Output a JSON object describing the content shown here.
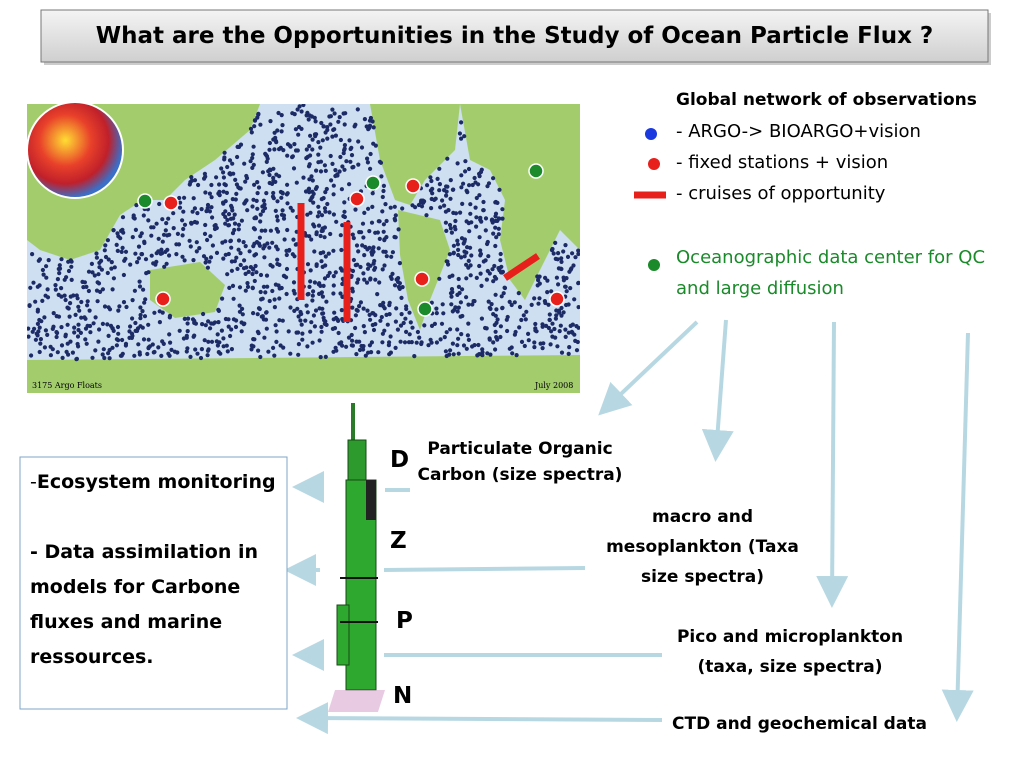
{
  "title": "What are the Opportunities in the Study of Ocean Particle Flux ?",
  "map": {
    "caption_left": "3175 Argo Floats",
    "caption_right": "July 2008"
  },
  "legend": {
    "heading": "Global network of observations",
    "items": [
      "- ARGO-> BIOARGO+vision",
      "- fixed stations + vision",
      "- cruises of opportunity"
    ],
    "data_center": "Oceanographic data center for QC and large diffusion"
  },
  "instrument_labels": [
    "D",
    "Z",
    "P",
    "N"
  ],
  "measurements": [
    "Particulate Organic Carbon (size spectra)",
    "macro and mesoplankton (Taxa size spectra)",
    "Pico and microplankton (taxa, size spectra)",
    "CTD and geochemical data"
  ],
  "uses": {
    "item1_dash": "-",
    "item1": "Ecosystem monitoring",
    "item2": "- Data assimilation in models for Carbone fluxes and marine ressources."
  }
}
